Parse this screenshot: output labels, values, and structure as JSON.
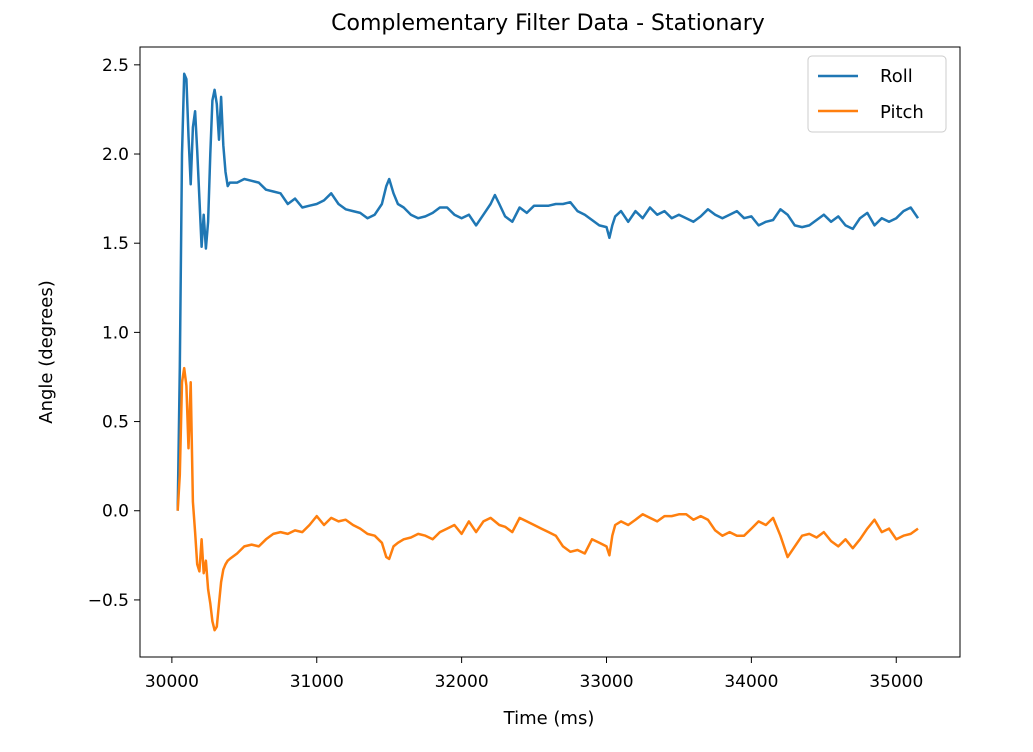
{
  "chart_data": {
    "type": "line",
    "title": "Complementary Filter Data - Stationary",
    "xlabel": "Time (ms)",
    "ylabel": "Angle (degrees)",
    "xlim": [
      29780,
      35440
    ],
    "ylim": [
      -0.82,
      2.6
    ],
    "xticks": [
      30000,
      31000,
      32000,
      33000,
      34000,
      35000
    ],
    "yticks": [
      -0.5,
      0.0,
      0.5,
      1.0,
      1.5,
      2.0,
      2.5
    ],
    "ytick_labels": [
      "−0.5",
      "0.0",
      "0.5",
      "1.0",
      "1.5",
      "2.0",
      "2.5"
    ],
    "grid": false,
    "legend_position": "top-right",
    "series": [
      {
        "name": "Roll",
        "color": "#1f77b4",
        "x": [
          30040,
          30055,
          30070,
          30085,
          30100,
          30115,
          30130,
          30145,
          30160,
          30175,
          30190,
          30205,
          30220,
          30235,
          30250,
          30265,
          30280,
          30295,
          30310,
          30325,
          30340,
          30355,
          30370,
          30385,
          30400,
          30450,
          30500,
          30550,
          30600,
          30650,
          30700,
          30750,
          30800,
          30850,
          30900,
          30950,
          31000,
          31050,
          31100,
          31150,
          31200,
          31250,
          31300,
          31350,
          31400,
          31450,
          31480,
          31500,
          31530,
          31560,
          31600,
          31650,
          31700,
          31750,
          31800,
          31850,
          31900,
          31950,
          32000,
          32050,
          32100,
          32150,
          32200,
          32230,
          32260,
          32300,
          32350,
          32400,
          32450,
          32500,
          32550,
          32600,
          32650,
          32700,
          32750,
          32800,
          32850,
          32900,
          32950,
          33000,
          33020,
          33040,
          33060,
          33100,
          33150,
          33200,
          33250,
          33300,
          33350,
          33400,
          33450,
          33500,
          33550,
          33600,
          33650,
          33700,
          33750,
          33800,
          33850,
          33900,
          33950,
          34000,
          34050,
          34100,
          34150,
          34200,
          34250,
          34300,
          34350,
          34400,
          34450,
          34500,
          34550,
          34600,
          34650,
          34700,
          34750,
          34800,
          34850,
          34900,
          34950,
          35000,
          35050,
          35100,
          35150
        ],
        "values": [
          0.0,
          0.8,
          2.0,
          2.45,
          2.42,
          2.1,
          1.83,
          2.15,
          2.24,
          2.02,
          1.75,
          1.48,
          1.66,
          1.47,
          1.62,
          2.0,
          2.3,
          2.36,
          2.28,
          2.08,
          2.32,
          2.05,
          1.9,
          1.82,
          1.84,
          1.84,
          1.86,
          1.85,
          1.84,
          1.8,
          1.79,
          1.78,
          1.72,
          1.75,
          1.7,
          1.71,
          1.72,
          1.74,
          1.78,
          1.72,
          1.69,
          1.68,
          1.67,
          1.64,
          1.66,
          1.72,
          1.82,
          1.86,
          1.78,
          1.72,
          1.7,
          1.66,
          1.64,
          1.65,
          1.67,
          1.7,
          1.7,
          1.66,
          1.64,
          1.66,
          1.6,
          1.66,
          1.72,
          1.77,
          1.72,
          1.65,
          1.62,
          1.7,
          1.67,
          1.71,
          1.71,
          1.71,
          1.72,
          1.72,
          1.73,
          1.68,
          1.66,
          1.63,
          1.6,
          1.59,
          1.53,
          1.6,
          1.65,
          1.68,
          1.62,
          1.68,
          1.64,
          1.7,
          1.66,
          1.68,
          1.64,
          1.66,
          1.64,
          1.62,
          1.65,
          1.69,
          1.66,
          1.64,
          1.66,
          1.68,
          1.64,
          1.65,
          1.6,
          1.62,
          1.63,
          1.69,
          1.66,
          1.6,
          1.59,
          1.6,
          1.63,
          1.66,
          1.62,
          1.65,
          1.6,
          1.58,
          1.64,
          1.67,
          1.6,
          1.64,
          1.62,
          1.64,
          1.68,
          1.7,
          1.64
        ],
        "x_extra_note": ""
      },
      {
        "name": "Pitch",
        "color": "#ff7f0e",
        "x": [
          30040,
          30055,
          30070,
          30085,
          30100,
          30115,
          30130,
          30145,
          30160,
          30175,
          30190,
          30205,
          30220,
          30235,
          30250,
          30265,
          30280,
          30295,
          30310,
          30325,
          30340,
          30355,
          30370,
          30385,
          30400,
          30450,
          30500,
          30550,
          30600,
          30650,
          30700,
          30750,
          30800,
          30850,
          30900,
          30950,
          31000,
          31050,
          31100,
          31150,
          31200,
          31250,
          31300,
          31350,
          31400,
          31450,
          31480,
          31500,
          31530,
          31560,
          31600,
          31650,
          31700,
          31750,
          31800,
          31850,
          31900,
          31950,
          32000,
          32050,
          32100,
          32150,
          32200,
          32230,
          32260,
          32300,
          32350,
          32400,
          32450,
          32500,
          32550,
          32600,
          32650,
          32700,
          32750,
          32800,
          32850,
          32900,
          32950,
          33000,
          33020,
          33040,
          33060,
          33100,
          33150,
          33200,
          33250,
          33300,
          33350,
          33400,
          33450,
          33500,
          33550,
          33600,
          33650,
          33700,
          33750,
          33800,
          33850,
          33900,
          33950,
          34000,
          34050,
          34100,
          34150,
          34200,
          34250,
          34300,
          34350,
          34400,
          34450,
          34500,
          34550,
          34600,
          34650,
          34700,
          34750,
          34800,
          34850,
          34900,
          34950,
          35000,
          35050,
          35100,
          35150
        ],
        "values": [
          0.0,
          0.2,
          0.72,
          0.8,
          0.7,
          0.35,
          0.72,
          0.05,
          -0.12,
          -0.3,
          -0.34,
          -0.16,
          -0.35,
          -0.28,
          -0.44,
          -0.52,
          -0.62,
          -0.67,
          -0.65,
          -0.52,
          -0.4,
          -0.33,
          -0.3,
          -0.28,
          -0.27,
          -0.24,
          -0.2,
          -0.19,
          -0.2,
          -0.16,
          -0.13,
          -0.12,
          -0.13,
          -0.11,
          -0.12,
          -0.08,
          -0.03,
          -0.08,
          -0.04,
          -0.06,
          -0.05,
          -0.08,
          -0.1,
          -0.13,
          -0.14,
          -0.18,
          -0.26,
          -0.27,
          -0.2,
          -0.18,
          -0.16,
          -0.15,
          -0.13,
          -0.14,
          -0.16,
          -0.12,
          -0.1,
          -0.08,
          -0.13,
          -0.06,
          -0.12,
          -0.06,
          -0.04,
          -0.06,
          -0.08,
          -0.09,
          -0.12,
          -0.04,
          -0.06,
          -0.08,
          -0.1,
          -0.12,
          -0.14,
          -0.2,
          -0.23,
          -0.22,
          -0.24,
          -0.16,
          -0.18,
          -0.2,
          -0.25,
          -0.14,
          -0.08,
          -0.06,
          -0.08,
          -0.05,
          -0.02,
          -0.04,
          -0.06,
          -0.03,
          -0.03,
          -0.02,
          -0.02,
          -0.05,
          -0.03,
          -0.05,
          -0.11,
          -0.14,
          -0.12,
          -0.14,
          -0.14,
          -0.1,
          -0.06,
          -0.08,
          -0.04,
          -0.14,
          -0.26,
          -0.2,
          -0.14,
          -0.13,
          -0.15,
          -0.12,
          -0.17,
          -0.2,
          -0.16,
          -0.21,
          -0.16,
          -0.1,
          -0.05,
          -0.12,
          -0.1,
          -0.16,
          -0.14,
          -0.13,
          -0.1
        ]
      }
    ]
  }
}
